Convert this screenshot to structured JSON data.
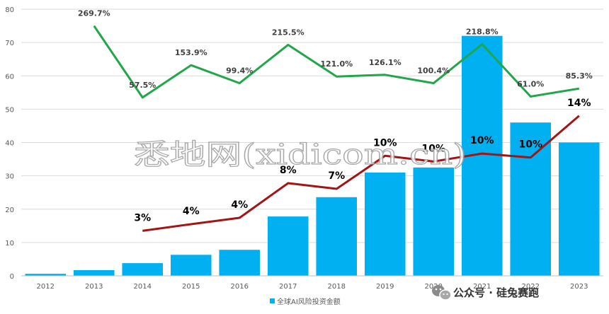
{
  "chart_data": {
    "type": "bar",
    "categories": [
      "2012",
      "2013",
      "2014",
      "2015",
      "2016",
      "2017",
      "2018",
      "2019",
      "2020",
      "2021",
      "2022",
      "2023"
    ],
    "ylim": [
      0,
      80
    ],
    "yticks": [
      0,
      10,
      20,
      30,
      40,
      50,
      60,
      70,
      80
    ],
    "grid": true,
    "legend_position": "bottom",
    "series": [
      {
        "name": "全球AI风险投资金额",
        "type": "bar",
        "color": "#00b0f0",
        "values": [
          0.6,
          1.7,
          3.8,
          6.3,
          7.8,
          17.8,
          23.6,
          31.0,
          32.5,
          72.0,
          46.0,
          40.0
        ]
      },
      {
        "type": "line",
        "color": "#21a64a",
        "values": [
          null,
          75,
          53.5,
          63.2,
          57.8,
          69.3,
          59.8,
          60.3,
          57.8,
          69.5,
          53.8,
          56.2
        ],
        "labels": [
          "",
          "269.7%",
          "57.5%",
          "153.9%",
          "99.4%",
          "215.5%",
          "121.0%",
          "126.1%",
          "100.4%",
          "218.8%",
          "61.0%",
          "85.3%"
        ]
      },
      {
        "type": "line",
        "color": "#a31515",
        "values": [
          null,
          null,
          13.5,
          15.5,
          17.4,
          27.8,
          26.1,
          36.0,
          34.3,
          36.7,
          35.5,
          48.0
        ],
        "labels": [
          "",
          "",
          "3%",
          "4%",
          "4%",
          "8%",
          "7%",
          "10%",
          "10%",
          "10%",
          "10%",
          "14%"
        ]
      }
    ]
  },
  "watermark": "悉地网(xidicom.cn)",
  "brand": "公众号 · 硅兔赛跑",
  "brand_icon": "wechat-icon"
}
